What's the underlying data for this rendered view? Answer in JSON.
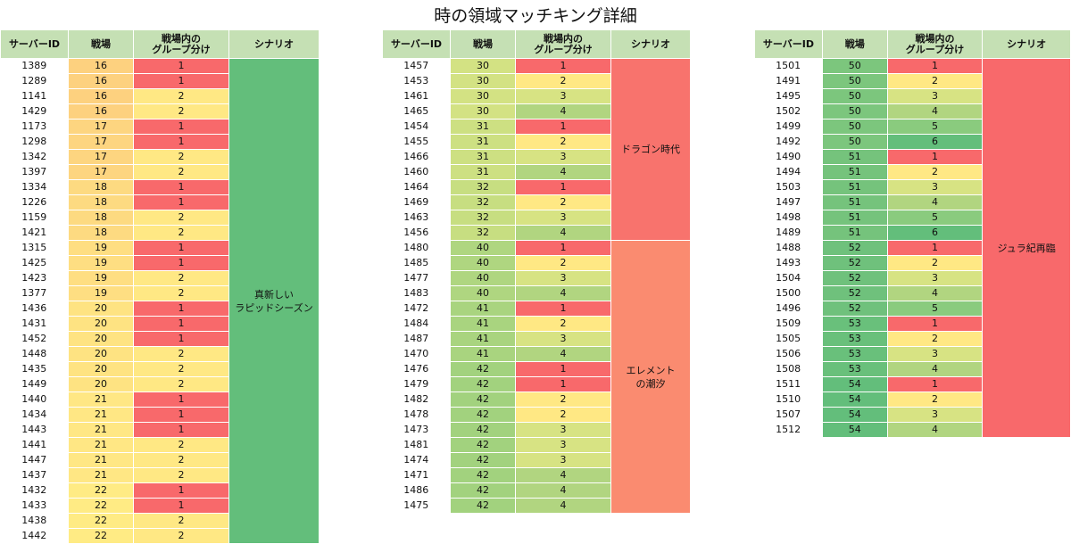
{
  "title": "時の領域マッチキング詳細",
  "headers": {
    "server_id": "サーバーID",
    "battlefield": "戦場",
    "group_line1": "戦場内の",
    "group_line2": "グループ分け",
    "scenario": "シナリオ"
  },
  "tables": [
    {
      "rows": [
        {
          "server_id": "1389",
          "battlefield": "16",
          "group": "1"
        },
        {
          "server_id": "1289",
          "battlefield": "16",
          "group": "1"
        },
        {
          "server_id": "1141",
          "battlefield": "16",
          "group": "2"
        },
        {
          "server_id": "1429",
          "battlefield": "16",
          "group": "2"
        },
        {
          "server_id": "1173",
          "battlefield": "17",
          "group": "1"
        },
        {
          "server_id": "1298",
          "battlefield": "17",
          "group": "1"
        },
        {
          "server_id": "1342",
          "battlefield": "17",
          "group": "2"
        },
        {
          "server_id": "1397",
          "battlefield": "17",
          "group": "2"
        },
        {
          "server_id": "1334",
          "battlefield": "18",
          "group": "1"
        },
        {
          "server_id": "1226",
          "battlefield": "18",
          "group": "1"
        },
        {
          "server_id": "1159",
          "battlefield": "18",
          "group": "2"
        },
        {
          "server_id": "1421",
          "battlefield": "18",
          "group": "2"
        },
        {
          "server_id": "1315",
          "battlefield": "19",
          "group": "1"
        },
        {
          "server_id": "1425",
          "battlefield": "19",
          "group": "1"
        },
        {
          "server_id": "1423",
          "battlefield": "19",
          "group": "2"
        },
        {
          "server_id": "1377",
          "battlefield": "19",
          "group": "2"
        },
        {
          "server_id": "1436",
          "battlefield": "20",
          "group": "1"
        },
        {
          "server_id": "1431",
          "battlefield": "20",
          "group": "1"
        },
        {
          "server_id": "1452",
          "battlefield": "20",
          "group": "1"
        },
        {
          "server_id": "1448",
          "battlefield": "20",
          "group": "2"
        },
        {
          "server_id": "1435",
          "battlefield": "20",
          "group": "2"
        },
        {
          "server_id": "1449",
          "battlefield": "20",
          "group": "2"
        },
        {
          "server_id": "1440",
          "battlefield": "21",
          "group": "1"
        },
        {
          "server_id": "1434",
          "battlefield": "21",
          "group": "1"
        },
        {
          "server_id": "1443",
          "battlefield": "21",
          "group": "1"
        },
        {
          "server_id": "1441",
          "battlefield": "21",
          "group": "2"
        },
        {
          "server_id": "1447",
          "battlefield": "21",
          "group": "2"
        },
        {
          "server_id": "1437",
          "battlefield": "21",
          "group": "2"
        },
        {
          "server_id": "1432",
          "battlefield": "22",
          "group": "1"
        },
        {
          "server_id": "1433",
          "battlefield": "22",
          "group": "1"
        },
        {
          "server_id": "1438",
          "battlefield": "22",
          "group": "2"
        },
        {
          "server_id": "1442",
          "battlefield": "22",
          "group": "2"
        }
      ],
      "scenarios": [
        {
          "lines": [
            "真新しい",
            "ラピッドシーズン"
          ],
          "start": 0,
          "span": 32,
          "color": "#63be7b"
        }
      ]
    },
    {
      "rows": [
        {
          "server_id": "1457",
          "battlefield": "30",
          "group": "1"
        },
        {
          "server_id": "1453",
          "battlefield": "30",
          "group": "2"
        },
        {
          "server_id": "1461",
          "battlefield": "30",
          "group": "3"
        },
        {
          "server_id": "1465",
          "battlefield": "30",
          "group": "4"
        },
        {
          "server_id": "1454",
          "battlefield": "31",
          "group": "1"
        },
        {
          "server_id": "1455",
          "battlefield": "31",
          "group": "2"
        },
        {
          "server_id": "1466",
          "battlefield": "31",
          "group": "3"
        },
        {
          "server_id": "1460",
          "battlefield": "31",
          "group": "4"
        },
        {
          "server_id": "1464",
          "battlefield": "32",
          "group": "1"
        },
        {
          "server_id": "1469",
          "battlefield": "32",
          "group": "2"
        },
        {
          "server_id": "1463",
          "battlefield": "32",
          "group": "3"
        },
        {
          "server_id": "1456",
          "battlefield": "32",
          "group": "4"
        },
        {
          "server_id": "1480",
          "battlefield": "40",
          "group": "1"
        },
        {
          "server_id": "1485",
          "battlefield": "40",
          "group": "2"
        },
        {
          "server_id": "1477",
          "battlefield": "40",
          "group": "3"
        },
        {
          "server_id": "1483",
          "battlefield": "40",
          "group": "4"
        },
        {
          "server_id": "1472",
          "battlefield": "41",
          "group": "1"
        },
        {
          "server_id": "1484",
          "battlefield": "41",
          "group": "2"
        },
        {
          "server_id": "1487",
          "battlefield": "41",
          "group": "3"
        },
        {
          "server_id": "1470",
          "battlefield": "41",
          "group": "4"
        },
        {
          "server_id": "1476",
          "battlefield": "42",
          "group": "1"
        },
        {
          "server_id": "1479",
          "battlefield": "42",
          "group": "1"
        },
        {
          "server_id": "1482",
          "battlefield": "42",
          "group": "2"
        },
        {
          "server_id": "1478",
          "battlefield": "42",
          "group": "2"
        },
        {
          "server_id": "1473",
          "battlefield": "42",
          "group": "3"
        },
        {
          "server_id": "1481",
          "battlefield": "42",
          "group": "3"
        },
        {
          "server_id": "1474",
          "battlefield": "42",
          "group": "3"
        },
        {
          "server_id": "1471",
          "battlefield": "42",
          "group": "4"
        },
        {
          "server_id": "1486",
          "battlefield": "42",
          "group": "4"
        },
        {
          "server_id": "1475",
          "battlefield": "42",
          "group": "4"
        }
      ],
      "scenarios": [
        {
          "lines": [
            "ドラゴン時代"
          ],
          "start": 0,
          "span": 12,
          "color": "#f8736d"
        },
        {
          "lines": [
            "エレメント",
            "の潮汐"
          ],
          "start": 12,
          "span": 18,
          "color": "#fa8b70"
        }
      ]
    },
    {
      "rows": [
        {
          "server_id": "1501",
          "battlefield": "50",
          "group": "1"
        },
        {
          "server_id": "1491",
          "battlefield": "50",
          "group": "2"
        },
        {
          "server_id": "1495",
          "battlefield": "50",
          "group": "3"
        },
        {
          "server_id": "1502",
          "battlefield": "50",
          "group": "4"
        },
        {
          "server_id": "1499",
          "battlefield": "50",
          "group": "5"
        },
        {
          "server_id": "1492",
          "battlefield": "50",
          "group": "6"
        },
        {
          "server_id": "1490",
          "battlefield": "51",
          "group": "1"
        },
        {
          "server_id": "1494",
          "battlefield": "51",
          "group": "2"
        },
        {
          "server_id": "1503",
          "battlefield": "51",
          "group": "3"
        },
        {
          "server_id": "1497",
          "battlefield": "51",
          "group": "4"
        },
        {
          "server_id": "1498",
          "battlefield": "51",
          "group": "5"
        },
        {
          "server_id": "1489",
          "battlefield": "51",
          "group": "6"
        },
        {
          "server_id": "1488",
          "battlefield": "52",
          "group": "1"
        },
        {
          "server_id": "1493",
          "battlefield": "52",
          "group": "2"
        },
        {
          "server_id": "1504",
          "battlefield": "52",
          "group": "3"
        },
        {
          "server_id": "1500",
          "battlefield": "52",
          "group": "4"
        },
        {
          "server_id": "1496",
          "battlefield": "52",
          "group": "5"
        },
        {
          "server_id": "1509",
          "battlefield": "53",
          "group": "1"
        },
        {
          "server_id": "1505",
          "battlefield": "53",
          "group": "2"
        },
        {
          "server_id": "1506",
          "battlefield": "53",
          "group": "3"
        },
        {
          "server_id": "1508",
          "battlefield": "53",
          "group": "4"
        },
        {
          "server_id": "1511",
          "battlefield": "54",
          "group": "1"
        },
        {
          "server_id": "1510",
          "battlefield": "54",
          "group": "2"
        },
        {
          "server_id": "1507",
          "battlefield": "54",
          "group": "3"
        },
        {
          "server_id": "1512",
          "battlefield": "54",
          "group": "4"
        }
      ],
      "scenarios": [
        {
          "lines": [
            "ジュラ紀再臨"
          ],
          "start": 0,
          "span": 25,
          "color": "#f8696b"
        }
      ]
    }
  ],
  "colors": {
    "header_bg": "#c5e0b4",
    "battlefield": {
      "16": "#fdd17f",
      "17": "#fdd580",
      "18": "#fdda81",
      "19": "#fede82",
      "20": "#fee382",
      "21": "#ffe784",
      "22": "#ffeb84",
      "30": "#d3e283",
      "31": "#cde082",
      "32": "#c7de81",
      "40": "#afd680",
      "41": "#a9d47f",
      "42": "#a2d27e",
      "50": "#7cc67d",
      "51": "#75c37c",
      "52": "#6fc17c",
      "53": "#69c07b",
      "54": "#63be7b"
    },
    "group": {
      "1": "#f8696b",
      "2": "#ffe884",
      "3": "#d7e383",
      "4": "#b1d580",
      "5": "#8acb7e",
      "6": "#63be7b"
    }
  }
}
